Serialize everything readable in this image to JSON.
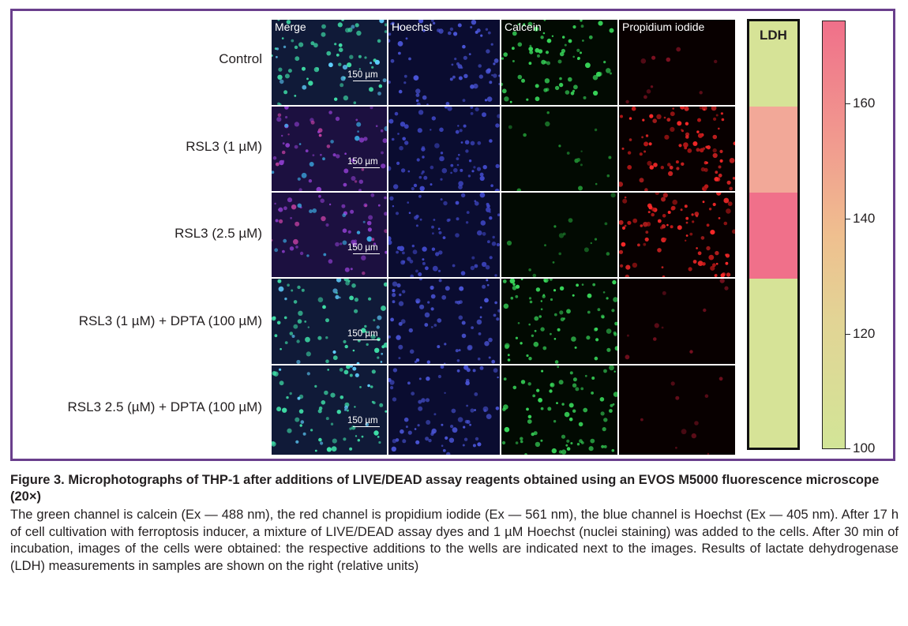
{
  "panel": {
    "channels": [
      "Merge",
      "Hoechst",
      "Calcein",
      "Propidium iodide"
    ],
    "rows": [
      {
        "label": "Control",
        "ldh": "low"
      },
      {
        "label": "RSL3 (1 µM)",
        "ldh": "mid"
      },
      {
        "label": "RSL3 (2.5 µM)",
        "ldh": "high"
      },
      {
        "label": "RSL3 (1 µM) + DPTA  (100 µM)",
        "ldh": "low"
      },
      {
        "label": "RSL3  2.5 (µM) + DPTA (100 µM)",
        "ldh": "low"
      }
    ],
    "scale_bar": "150 µm",
    "ldh_title": "LDH",
    "colorbar": {
      "ticks": [
        "160",
        "140",
        "120",
        "100"
      ],
      "min": 100,
      "max": 174,
      "colors": {
        "high": "#f0708a",
        "mid": "#f2a898",
        "low": "#d6e397"
      }
    }
  },
  "caption": {
    "title": "Figure 3. Microphotographs of THP-1 after additions of LIVE/DEAD assay reagents obtained using an EVOS M5000 fluorescence microscope (20×)",
    "body": "The green channel is calcein (Ex — 488 nm), the red channel is propidium iodide (Ex — 561 nm), the blue channel is Hoechst (Ex — 405 nm). After 17 h of cell cultivation with ferroptosis inducer, a mixture of LIVE/DEAD assay dyes and 1 µM Hoechst (nuclei staining) was added to the cells. After 30 min of incubation, images of the cells were obtained: the respective additions to the wells are indicated next to the images. Results of lactate dehydrogenase (LDH) measurements in samples are shown on the right (relative units)"
  }
}
